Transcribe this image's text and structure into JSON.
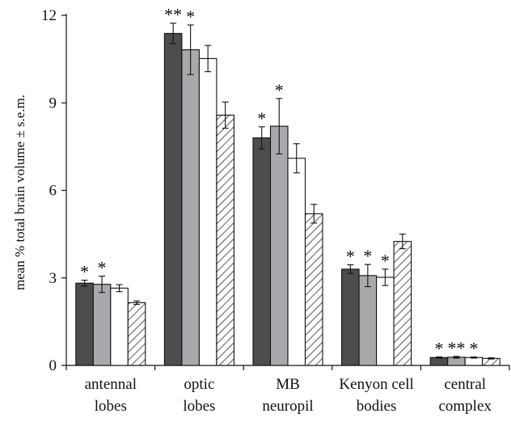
{
  "chart_data": {
    "type": "bar",
    "ylabel": "mean % total brain volume ± s.e.m.",
    "ylim": [
      0,
      12
    ],
    "yticks": [
      "0",
      "3",
      "6",
      "9",
      "12"
    ],
    "categories": [
      [
        "antennal",
        "lobes"
      ],
      [
        "optic",
        "lobes"
      ],
      [
        "MB",
        "neuropil"
      ],
      [
        "Kenyon cell",
        "bodies"
      ],
      [
        "central",
        "complex"
      ]
    ],
    "series": [
      {
        "values": [
          2.82,
          11.38,
          7.8,
          3.3,
          0.27
        ],
        "errors": [
          0.1,
          0.35,
          0.38,
          0.15,
          0.02
        ],
        "fill": "#4d4d4f",
        "hatch": false
      },
      {
        "values": [
          2.78,
          10.82,
          8.2,
          3.08,
          0.28
        ],
        "errors": [
          0.28,
          0.85,
          0.95,
          0.38,
          0.03
        ],
        "fill": "#a7a9ac",
        "hatch": false
      },
      {
        "values": [
          2.65,
          10.52,
          7.1,
          3.02,
          0.27
        ],
        "errors": [
          0.12,
          0.45,
          0.5,
          0.28,
          0.02
        ],
        "fill": "#ffffff",
        "hatch": false
      },
      {
        "values": [
          2.15,
          8.58,
          5.2,
          4.25,
          0.24
        ],
        "errors": [
          0.06,
          0.45,
          0.32,
          0.25,
          0.02
        ],
        "fill": "#ffffff",
        "hatch": true
      }
    ],
    "annotations": [
      {
        "text": "*",
        "category": 0,
        "series": 0
      },
      {
        "text": "*",
        "category": 0,
        "series": 1
      },
      {
        "text": "**",
        "category": 1,
        "series": 0
      },
      {
        "text": "*",
        "category": 1,
        "series": 1
      },
      {
        "text": "*",
        "category": 2,
        "series": 0
      },
      {
        "text": "*",
        "category": 2,
        "series": 1
      },
      {
        "text": "*",
        "category": 3,
        "series": 0
      },
      {
        "text": "*",
        "category": 3,
        "series": 1
      },
      {
        "text": "*",
        "category": 3,
        "series": 2
      },
      {
        "text": "*",
        "category": 4,
        "series": 0
      },
      {
        "text": "**",
        "category": 4,
        "series": 1
      },
      {
        "text": "*",
        "category": 4,
        "series": 2
      }
    ],
    "grid": false,
    "legend": "none"
  }
}
